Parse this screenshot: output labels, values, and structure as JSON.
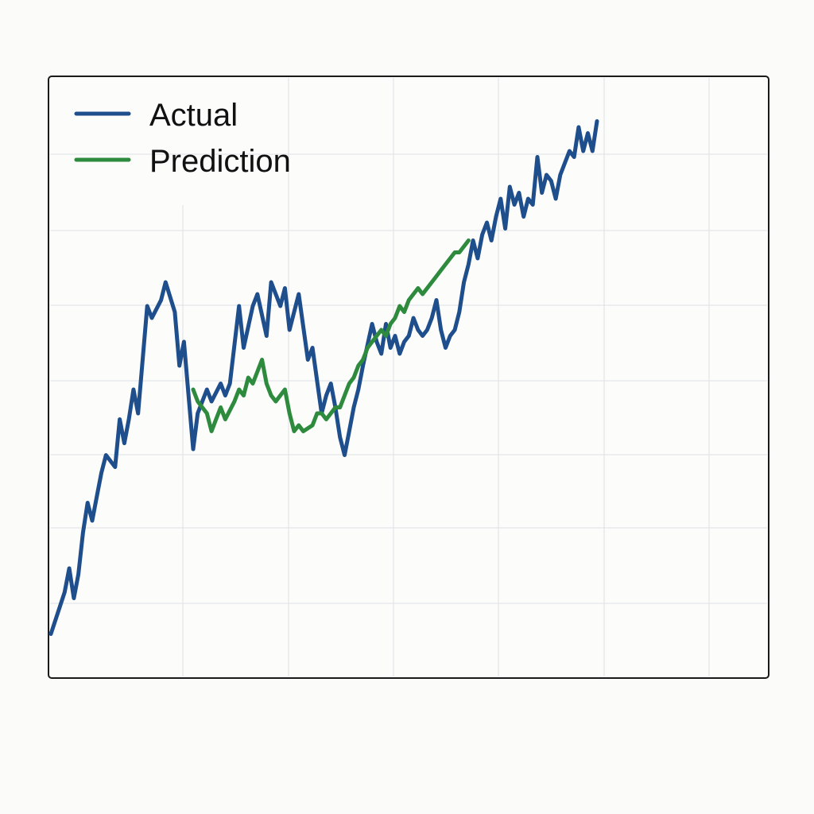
{
  "chart_data": {
    "type": "line",
    "title": "",
    "xlabel": "",
    "ylabel": "",
    "grid": true,
    "legend_position": "top-left",
    "xlim": [
      0,
      150
    ],
    "ylim": [
      0,
      100
    ],
    "series": [
      {
        "name": "Actual",
        "color": "#1f4e8c",
        "points": [
          [
            0,
            7
          ],
          [
            3,
            14
          ],
          [
            4,
            18
          ],
          [
            5,
            13
          ],
          [
            6,
            17
          ],
          [
            7,
            24
          ],
          [
            8,
            29
          ],
          [
            9,
            26
          ],
          [
            10,
            30
          ],
          [
            11,
            34
          ],
          [
            12,
            37
          ],
          [
            14,
            35
          ],
          [
            15,
            43
          ],
          [
            16,
            39
          ],
          [
            17,
            43
          ],
          [
            18,
            48
          ],
          [
            19,
            44
          ],
          [
            21,
            62
          ],
          [
            22,
            60
          ],
          [
            24,
            63
          ],
          [
            25,
            66
          ],
          [
            27,
            61
          ],
          [
            28,
            52
          ],
          [
            29,
            56
          ],
          [
            31,
            38
          ],
          [
            32,
            44
          ],
          [
            34,
            48
          ],
          [
            35,
            46
          ],
          [
            37,
            49
          ],
          [
            38,
            47
          ],
          [
            39,
            49
          ],
          [
            41,
            62
          ],
          [
            42,
            55
          ],
          [
            44,
            62
          ],
          [
            45,
            64
          ],
          [
            47,
            57
          ],
          [
            48,
            66
          ],
          [
            50,
            62
          ],
          [
            51,
            65
          ],
          [
            52,
            58
          ],
          [
            54,
            64
          ],
          [
            56,
            53
          ],
          [
            57,
            55
          ],
          [
            59,
            44
          ],
          [
            60,
            47
          ],
          [
            61,
            49
          ],
          [
            62,
            45
          ],
          [
            63,
            40
          ],
          [
            64,
            37
          ],
          [
            65,
            41
          ],
          [
            66,
            45
          ],
          [
            67,
            48
          ],
          [
            68,
            52
          ],
          [
            70,
            59
          ],
          [
            71,
            56
          ],
          [
            72,
            54
          ],
          [
            73,
            59
          ],
          [
            74,
            55
          ],
          [
            75,
            57
          ],
          [
            76,
            54
          ],
          [
            77,
            56
          ],
          [
            78,
            57
          ],
          [
            79,
            60
          ],
          [
            80,
            58
          ],
          [
            81,
            57
          ],
          [
            82,
            58
          ],
          [
            83,
            60
          ],
          [
            84,
            63
          ],
          [
            85,
            58
          ],
          [
            86,
            55
          ],
          [
            87,
            57
          ],
          [
            88,
            58
          ],
          [
            89,
            61
          ],
          [
            90,
            66
          ],
          [
            91,
            69
          ],
          [
            92,
            73
          ],
          [
            93,
            70
          ],
          [
            94,
            74
          ],
          [
            95,
            76
          ],
          [
            96,
            73
          ],
          [
            97,
            77
          ],
          [
            98,
            80
          ],
          [
            99,
            75
          ],
          [
            100,
            82
          ],
          [
            101,
            79
          ],
          [
            102,
            81
          ],
          [
            103,
            77
          ],
          [
            104,
            80
          ],
          [
            105,
            79
          ],
          [
            106,
            87
          ],
          [
            107,
            81
          ],
          [
            108,
            84
          ],
          [
            109,
            83
          ],
          [
            110,
            80
          ],
          [
            111,
            84
          ],
          [
            112,
            86
          ],
          [
            113,
            88
          ],
          [
            114,
            87
          ],
          [
            115,
            92
          ],
          [
            116,
            88
          ],
          [
            117,
            91
          ],
          [
            118,
            88
          ],
          [
            119,
            93
          ]
        ]
      },
      {
        "name": "Prediction",
        "color": "#2e8b3e",
        "points": [
          [
            31,
            48
          ],
          [
            32,
            46
          ],
          [
            33,
            45
          ],
          [
            34,
            44
          ],
          [
            35,
            41
          ],
          [
            36,
            43
          ],
          [
            37,
            45
          ],
          [
            38,
            43
          ],
          [
            40,
            46
          ],
          [
            41,
            48
          ],
          [
            42,
            47
          ],
          [
            43,
            50
          ],
          [
            44,
            49
          ],
          [
            45,
            51
          ],
          [
            46,
            53
          ],
          [
            47,
            49
          ],
          [
            48,
            47
          ],
          [
            49,
            46
          ],
          [
            51,
            48
          ],
          [
            52,
            44
          ],
          [
            53,
            41
          ],
          [
            54,
            42
          ],
          [
            55,
            41
          ],
          [
            57,
            42
          ],
          [
            58,
            44
          ],
          [
            59,
            44
          ],
          [
            60,
            43
          ],
          [
            61,
            44
          ],
          [
            62,
            45
          ],
          [
            63,
            45
          ],
          [
            64,
            47
          ],
          [
            65,
            49
          ],
          [
            66,
            50
          ],
          [
            67,
            52
          ],
          [
            68,
            53
          ],
          [
            69,
            55
          ],
          [
            70,
            56
          ],
          [
            71,
            57
          ],
          [
            72,
            58
          ],
          [
            73,
            57
          ],
          [
            74,
            59
          ],
          [
            75,
            60
          ],
          [
            76,
            62
          ],
          [
            77,
            61
          ],
          [
            78,
            63
          ],
          [
            79,
            64
          ],
          [
            80,
            65
          ],
          [
            81,
            64
          ],
          [
            82,
            65
          ],
          [
            83,
            66
          ],
          [
            84,
            67
          ],
          [
            85,
            68
          ],
          [
            86,
            69
          ],
          [
            87,
            70
          ],
          [
            88,
            71
          ],
          [
            89,
            71
          ],
          [
            90,
            72
          ],
          [
            91,
            73
          ]
        ]
      }
    ]
  }
}
